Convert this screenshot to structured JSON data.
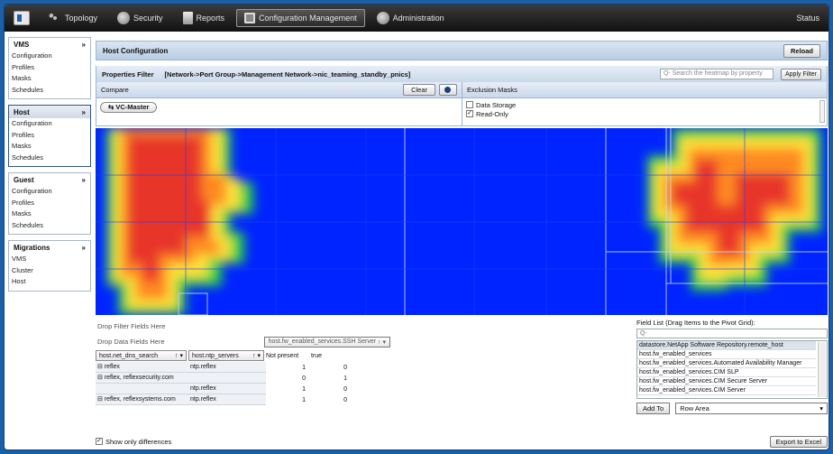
{
  "topbar": {
    "items": [
      {
        "label": "Topology",
        "icon": "topology-icon"
      },
      {
        "label": "Security",
        "icon": "gear-icon"
      },
      {
        "label": "Reports",
        "icon": "report-icon"
      },
      {
        "label": "Configuration Management",
        "icon": "configuration-icon"
      },
      {
        "label": "Administration",
        "icon": "gear-icon"
      }
    ],
    "active": "Configuration Management",
    "status": "Status"
  },
  "sidebar": {
    "sections": [
      {
        "title": "VMS",
        "items": [
          "Configuration",
          "Profiles",
          "Masks",
          "Schedules"
        ]
      },
      {
        "title": "Host",
        "items": [
          "Configuration",
          "Profiles",
          "Masks",
          "Schedules"
        ]
      },
      {
        "title": "Guest",
        "items": [
          "Configuration",
          "Profiles",
          "Masks",
          "Schedules"
        ]
      },
      {
        "title": "Migrations",
        "items": [
          "VMS",
          "Cluster",
          "Host"
        ]
      }
    ],
    "collapse_glyph": "»"
  },
  "main": {
    "title": "Host Configuration",
    "reload_label": "Reload",
    "properties_filter_label": "Properties Filter",
    "properties_filter_path": "[Network->Port Group->Management Network->nic_teaming_standby_pnics]",
    "search_placeholder": "Search the heatmap by property",
    "apply_filter_label": "Apply Filter",
    "compare_label": "Compare",
    "clear_label": "Clear",
    "compare_target": "VC-Master",
    "exclusion_label": "Exclusion Masks",
    "exclusions": [
      {
        "label": "Data Storage",
        "checked": false
      },
      {
        "label": "Read-Only",
        "checked": true
      }
    ]
  },
  "pivot": {
    "drop_filter": "Drop Filter Fields Here",
    "drop_data": "Drop Data Fields Here",
    "column_field": "host.fw_enabled_services.SSH Server",
    "row_fields": [
      "host.net_dns_search",
      "host.ntp_servers"
    ],
    "col_headers": [
      "Not present",
      "true"
    ],
    "rows": [
      {
        "dns": "reflex",
        "ntp": "ntp.reflex",
        "np": "1",
        "t": "0"
      },
      {
        "dns": "reflex, reflexsecurity.com",
        "ntp": "",
        "np": "0",
        "t": "1"
      },
      {
        "dns": "",
        "ntp": "ntp.reflex",
        "np": "1",
        "t": "0"
      },
      {
        "dns": "reflex, reflexsystems.com",
        "ntp": "ntp.reflex",
        "np": "1",
        "t": "0"
      }
    ],
    "show_only_differences": "Show only differences",
    "export_label": "Export to Excel"
  },
  "field_list": {
    "title": "Field List (Drag Items to the Pivot Grid):",
    "search_placeholder": "",
    "items": [
      "datastore.NetApp Software Repository.remote_host",
      "host.fw_enabled_services",
      "host.fw_enabled_services.Automated Availability Manager",
      "host.fw_enabled_services.CIM SLP",
      "host.fw_enabled_services.CIM Secure Server",
      "host.fw_enabled_services.CIM Server"
    ],
    "add_to_label": "Add To",
    "area_value": "Row Area"
  },
  "colors": {
    "heat_low": "#0024ff",
    "heat_mid": "#2bd34a",
    "heat_high": "#e8362a",
    "accent": "#1d5fa5"
  }
}
